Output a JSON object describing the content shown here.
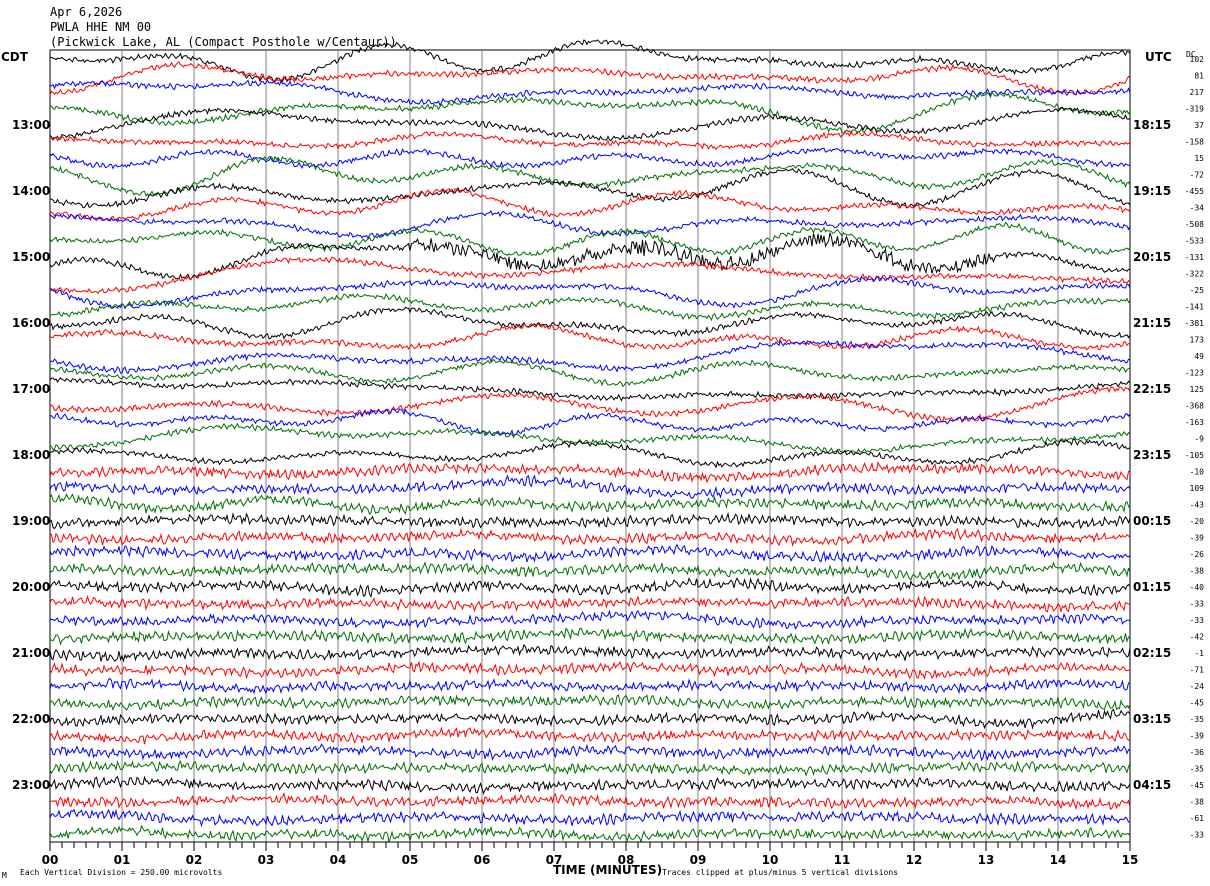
{
  "header": {
    "date": "Apr 6,2026",
    "station": "PWLA HHE NM 00",
    "location": "(Pickwick Lake, AL (Compact Posthole w/Centaur))"
  },
  "chart_data": {
    "type": "line",
    "title": "Apr 6,2026 PWLA HHE NM 00",
    "xlabel": "TIME (MINUTES)",
    "xlim": [
      0,
      15
    ],
    "x_ticks": [
      "00",
      "01",
      "02",
      "03",
      "04",
      "05",
      "06",
      "07",
      "08",
      "09",
      "10",
      "11",
      "12",
      "13",
      "14",
      "15"
    ],
    "left_axis_label": "CDT",
    "right_axis_label": "UTC",
    "dc_label": "DC",
    "left_hour_labels": [
      "13:00",
      "14:00",
      "15:00",
      "16:00",
      "17:00",
      "18:00",
      "19:00",
      "20:00",
      "21:00",
      "22:00",
      "23:00"
    ],
    "right_hour_labels": [
      "18:15",
      "19:15",
      "20:15",
      "21:15",
      "22:15",
      "23:15",
      "00:15",
      "01:15",
      "02:15",
      "03:15",
      "04:15"
    ],
    "trace_colors": [
      "#000000",
      "#ff0000",
      "#0000ff",
      "#007000"
    ],
    "rows_per_hour": 4,
    "minutes_per_row": 15,
    "dc_offsets": [
      102,
      81,
      217,
      -319,
      37,
      -158,
      15,
      -72,
      -455,
      -34,
      -508,
      -533,
      -131,
      -322,
      -25,
      -141,
      -381,
      173,
      49,
      -123,
      125,
      -368,
      -163,
      -9,
      -105,
      -10,
      109,
      -43,
      -20,
      -39,
      -26,
      -38,
      -40,
      -33,
      -33,
      -42,
      -1,
      -71,
      -24,
      -45,
      -35,
      -39,
      -36,
      -35,
      -45,
      -38,
      -61,
      -33
    ],
    "relative_amplitude": [
      1.6,
      1.6,
      1.6,
      1.6,
      1.5,
      1.5,
      1.5,
      1.5,
      1.4,
      1.4,
      1.4,
      1.4,
      1.5,
      1.2,
      1.2,
      1.2,
      1.2,
      1.0,
      1.0,
      1.0,
      1.1,
      1.0,
      1.0,
      1.0,
      0.9,
      0.4,
      0.4,
      0.4,
      0.3,
      0.3,
      0.3,
      0.3,
      0.3,
      0.3,
      0.3,
      0.3,
      0.3,
      0.3,
      0.3,
      0.3,
      0.3,
      0.3,
      0.3,
      0.3,
      0.3,
      0.3,
      0.3,
      0.3
    ]
  },
  "footer": {
    "scale_note": "Each Vertical Division =  250.00 microvolts",
    "clip_note": "Traces clipped at plus/minus 5 vertical divisions",
    "corner_mark": "M"
  }
}
